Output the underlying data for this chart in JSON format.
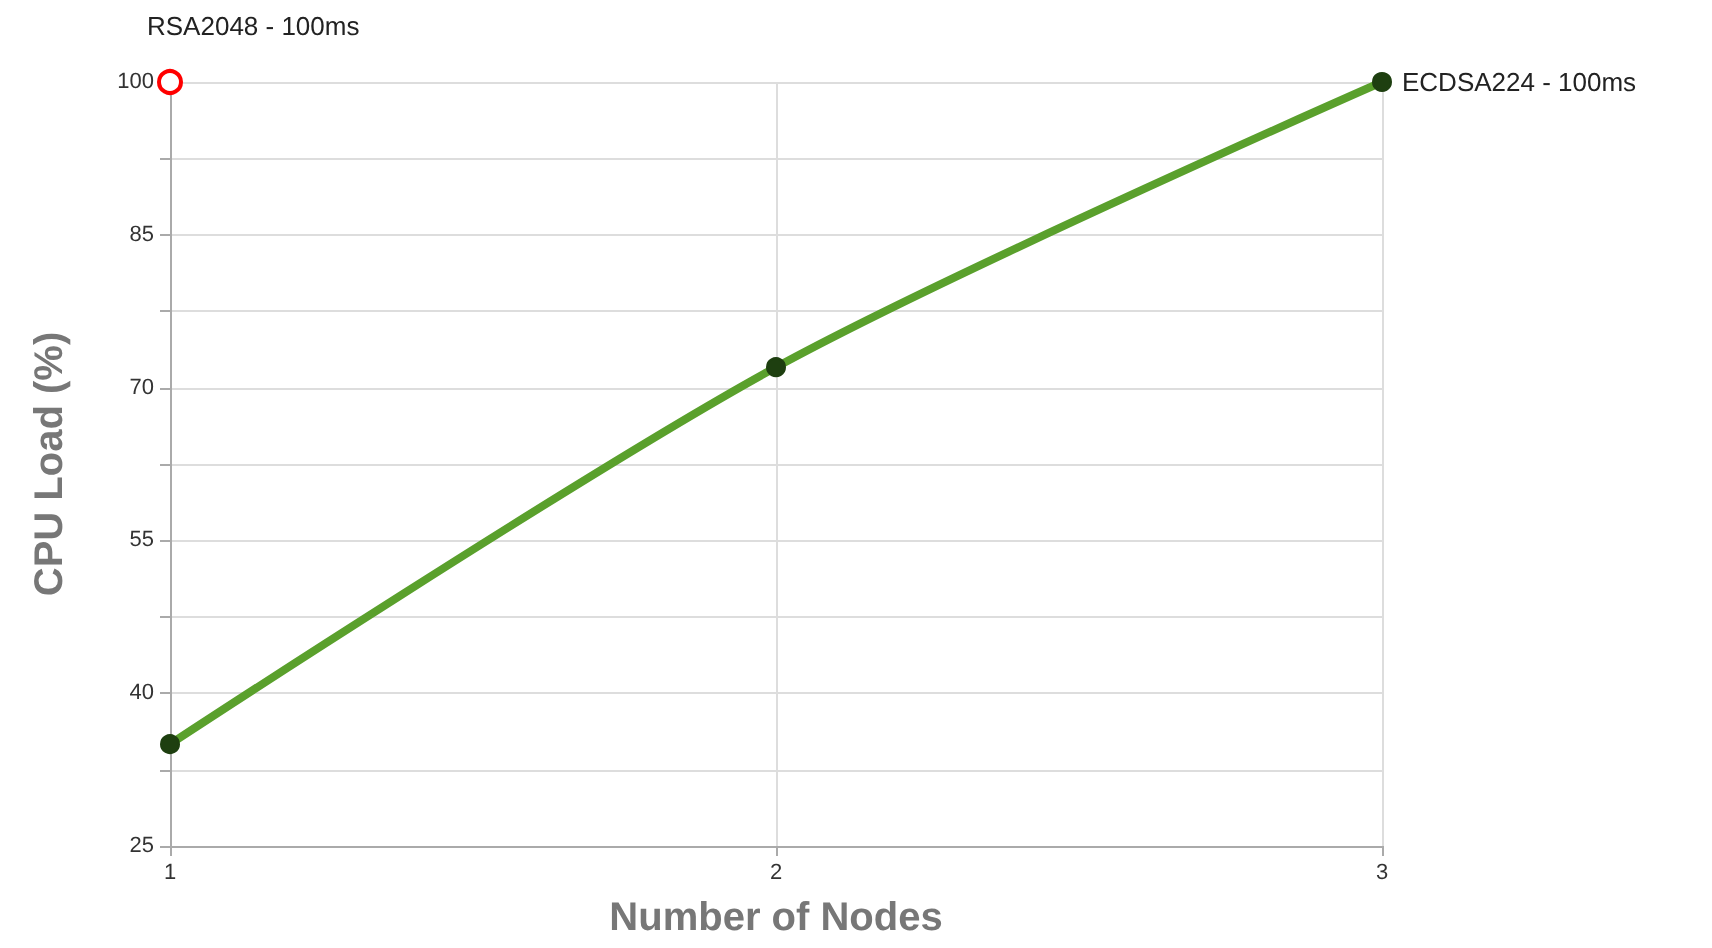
{
  "chart_data": {
    "type": "line",
    "xlabel": "Number of Nodes",
    "ylabel": "CPU Load (%)",
    "x": [
      1,
      2,
      3
    ],
    "xlim": [
      1,
      3
    ],
    "xticks": [
      1,
      2,
      3
    ],
    "ylim": [
      25,
      100
    ],
    "yticks": [
      25,
      {
        "value": 32.5,
        "label": null
      },
      40,
      {
        "value": 47.5,
        "label": null
      },
      55,
      {
        "value": 62.5,
        "label": null
      },
      70,
      {
        "value": 77.5,
        "label": null
      },
      85,
      {
        "value": 92.5,
        "label": null
      },
      100
    ],
    "grid": true,
    "legend": false,
    "marker": "circle",
    "line_style": "solid",
    "series": [
      {
        "name": "RSA2048 - 100ms",
        "color": "#ff0000",
        "values": [
          100,
          null,
          null
        ]
      },
      {
        "name": "ECDSA224 - 100ms",
        "color": "#5aa02c",
        "values": [
          35,
          72,
          100
        ]
      }
    ]
  }
}
